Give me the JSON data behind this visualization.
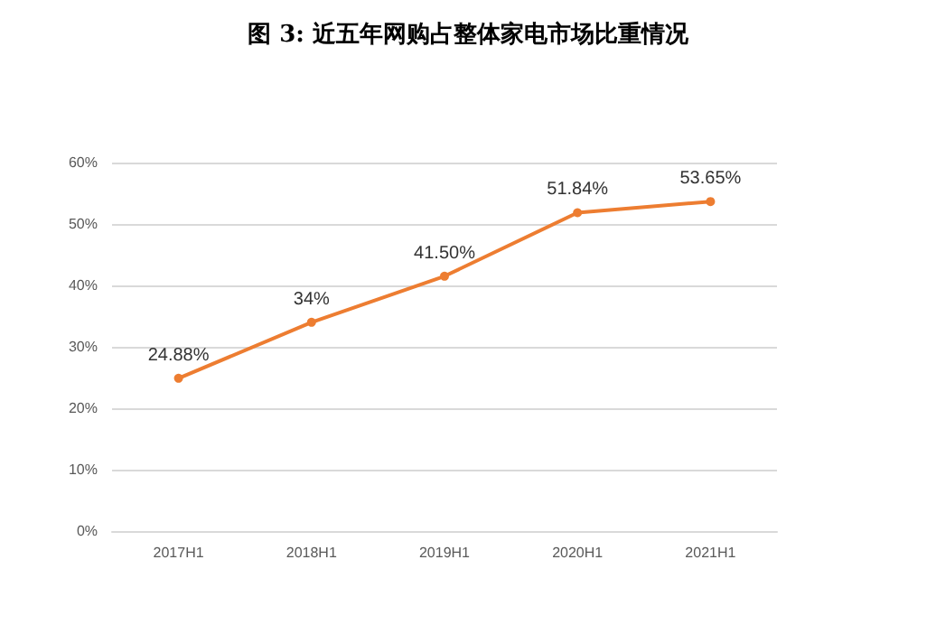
{
  "chart_data": {
    "type": "line",
    "title": "图 3: 近五年网购占整体家电市场比重情况",
    "categories": [
      "2017H1",
      "2018H1",
      "2019H1",
      "2020H1",
      "2021H1"
    ],
    "series": [
      {
        "color": "#ed7d31",
        "values": [
          24.88,
          34,
          41.5,
          51.84,
          53.65
        ],
        "value_labels": [
          "24.88%",
          "34%",
          "41.50%",
          "51.84%",
          "53.65%"
        ]
      }
    ],
    "ylim": [
      0,
      60
    ],
    "yticks": [
      {
        "value": 0,
        "label": "0%"
      },
      {
        "value": 10,
        "label": "10%"
      },
      {
        "value": 20,
        "label": "20%"
      },
      {
        "value": 30,
        "label": "30%"
      },
      {
        "value": 40,
        "label": "40%"
      },
      {
        "value": 50,
        "label": "50%"
      },
      {
        "value": 60,
        "label": "60%"
      }
    ],
    "grid": "y",
    "marker": "circle",
    "line_style": "solid"
  }
}
